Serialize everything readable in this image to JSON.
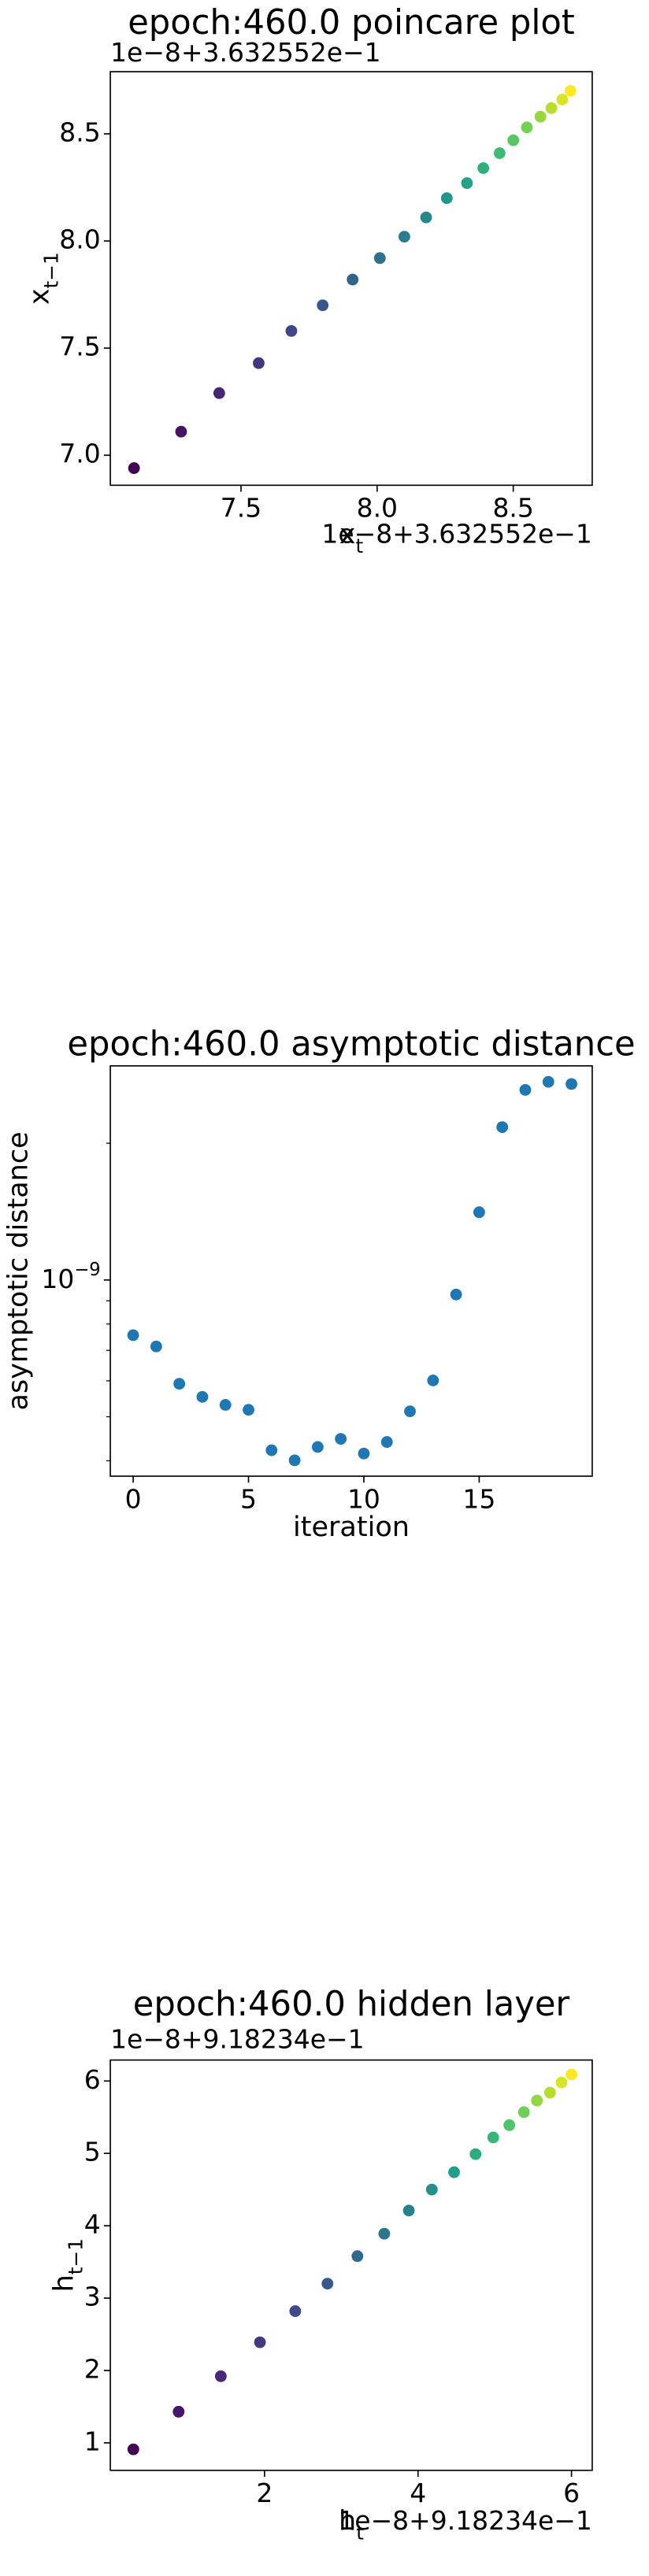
{
  "chart_data": [
    {
      "type": "scatter",
      "title": "epoch:460.0 poincare plot",
      "xlabel": {
        "text": "x",
        "sub": "t"
      },
      "ylabel": {
        "text": "x",
        "sub": "t−1"
      },
      "x_offset": "1e−8+3.632552e−1",
      "y_offset": "1e−8+3.632552e−1",
      "colormap": "viridis",
      "x": [
        7.107,
        7.28,
        7.42,
        7.565,
        7.685,
        7.8,
        7.91,
        8.01,
        8.1,
        8.18,
        8.256,
        8.33,
        8.39,
        8.45,
        8.5,
        8.55,
        8.6,
        8.64,
        8.68,
        8.71
      ],
      "y": [
        6.94,
        7.11,
        7.29,
        7.43,
        7.58,
        7.7,
        7.82,
        7.92,
        8.02,
        8.11,
        8.2,
        8.27,
        8.34,
        8.41,
        8.47,
        8.53,
        8.58,
        8.62,
        8.66,
        8.7
      ],
      "xlim": [
        7.02,
        8.79
      ],
      "ylim": [
        6.86,
        8.79
      ],
      "xticks": [
        7.5,
        {
          "value": 8,
          "label": "8.0"
        },
        8.5
      ],
      "yticks": [
        {
          "value": 7,
          "label": "7.0"
        },
        7.5,
        {
          "value": 8,
          "label": "8.0"
        },
        8.5
      ]
    },
    {
      "type": "scatter",
      "title": "epoch:460.0 asymptotic distance",
      "xlabel": {
        "text": "iteration"
      },
      "ylabel": {
        "text": "asymptotic distance"
      },
      "color": "#1f77b4",
      "yscale": "log",
      "x": [
        0,
        1,
        2,
        3,
        4,
        5,
        6,
        7,
        8,
        9,
        10,
        11,
        12,
        13,
        14,
        15,
        16,
        17,
        18,
        19
      ],
      "y": [
        7.56e-10,
        7.14e-10,
        5.91e-10,
        5.53e-10,
        5.31e-10,
        5.18e-10,
        4.22e-10,
        4.01e-10,
        4.29e-10,
        4.47e-10,
        4.15e-10,
        4.4e-10,
        5.14e-10,
        6.01e-10,
        9.29e-10,
        1.41e-09,
        2.17e-09,
        2.62e-09,
        2.73e-09,
        2.7e-09
      ],
      "xlim": [
        -0.99,
        19.9
      ],
      "ylim": [
        3.7e-10,
        2.96e-09
      ],
      "xticks": [
        0,
        5,
        10,
        15
      ],
      "yticks": [
        {
          "value": 1e-09,
          "label": "10",
          "exponent": "−9"
        }
      ],
      "yticks_minor": [
        4e-10,
        5e-10,
        6e-10,
        7e-10,
        8e-10,
        9e-10,
        2e-09
      ]
    },
    {
      "type": "scatter",
      "title": "epoch:460.0 hidden layer",
      "xlabel": {
        "text": "h",
        "sub": "t"
      },
      "ylabel": {
        "text": "h",
        "sub": "t−1"
      },
      "x_offset": "1e−8+9.18234e−1",
      "y_offset": "1e−8+9.18234e−1",
      "colormap": "viridis",
      "x": [
        0.29,
        0.88,
        1.43,
        1.94,
        2.4,
        2.82,
        3.21,
        3.56,
        3.88,
        4.18,
        4.47,
        4.75,
        4.98,
        5.19,
        5.38,
        5.55,
        5.72,
        5.87,
        6.0
      ],
      "y": [
        0.91,
        1.43,
        1.92,
        2.39,
        2.82,
        3.2,
        3.58,
        3.89,
        4.21,
        4.5,
        4.74,
        4.99,
        5.22,
        5.39,
        5.57,
        5.73,
        5.84,
        5.98,
        6.09
      ],
      "xlim": [
        -0.01,
        6.27
      ],
      "ylim": [
        0.62,
        6.29
      ],
      "xticks": [
        2,
        4,
        6
      ],
      "yticks": [
        1,
        2,
        3,
        4,
        5,
        6
      ]
    }
  ]
}
